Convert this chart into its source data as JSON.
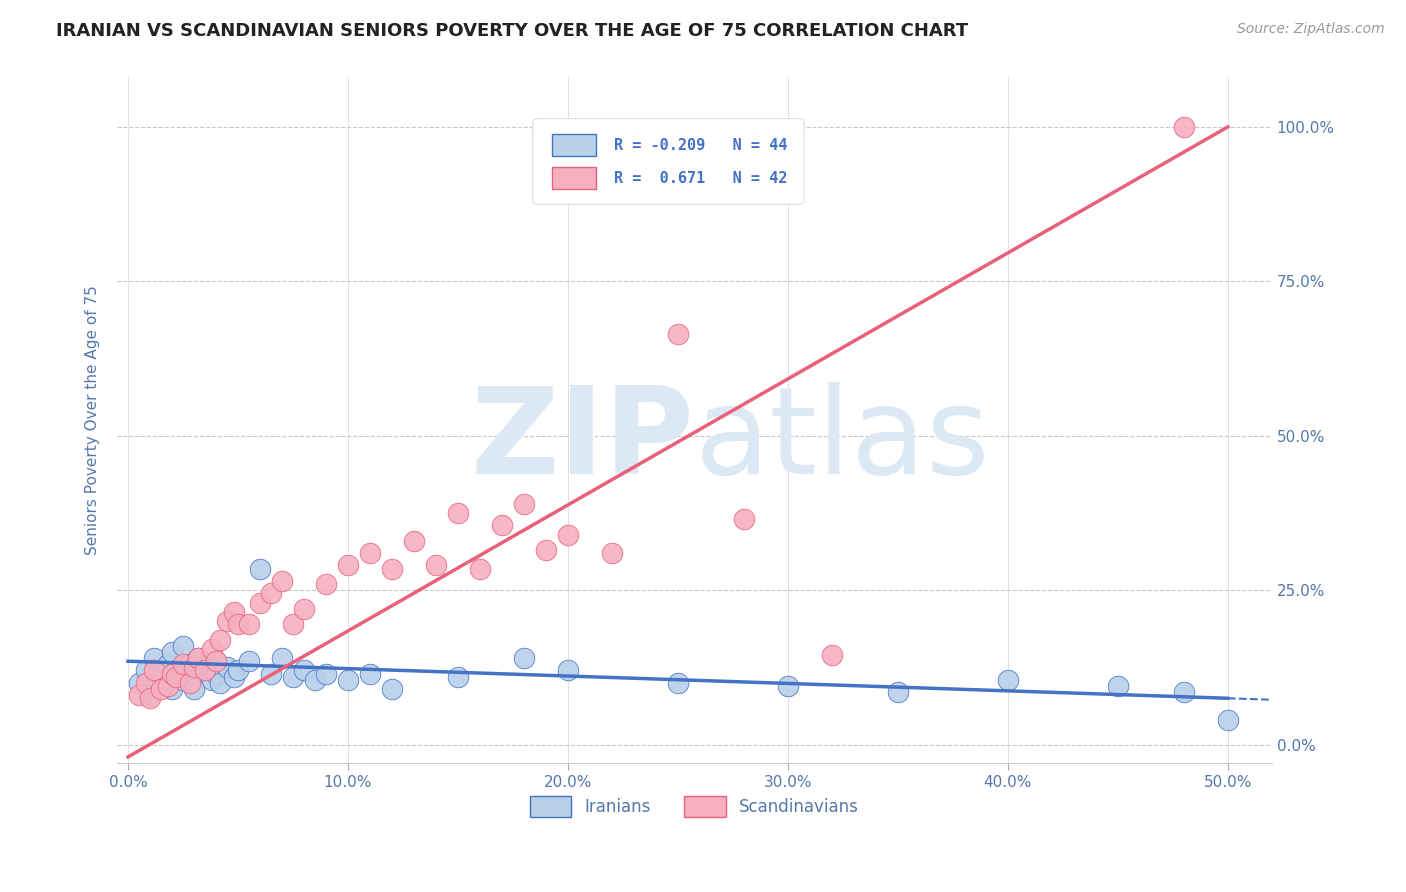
{
  "title": "IRANIAN VS SCANDINAVIAN SENIORS POVERTY OVER THE AGE OF 75 CORRELATION CHART",
  "source": "Source: ZipAtlas.com",
  "ylabel": "Seniors Poverty Over the Age of 75",
  "xlim": [
    -0.005,
    0.52
  ],
  "ylim": [
    -0.03,
    1.08
  ],
  "ytick_labels": [
    "0.0%",
    "25.0%",
    "50.0%",
    "75.0%",
    "100.0%"
  ],
  "ytick_values": [
    0.0,
    0.25,
    0.5,
    0.75,
    1.0
  ],
  "xtick_labels": [
    "0.0%",
    "",
    "",
    "",
    "",
    "",
    "",
    "",
    "",
    "",
    "10.0%",
    "",
    "",
    "",
    "",
    "",
    "",
    "",
    "",
    "",
    "20.0%",
    "",
    "",
    "",
    "",
    "",
    "",
    "",
    "",
    "",
    "30.0%",
    "",
    "",
    "",
    "",
    "",
    "",
    "",
    "",
    "",
    "40.0%",
    "",
    "",
    "",
    "",
    "",
    "",
    "",
    "",
    "",
    "50.0%"
  ],
  "xtick_values": [
    0.0,
    0.01,
    0.02,
    0.03,
    0.04,
    0.05,
    0.06,
    0.07,
    0.08,
    0.09,
    0.1,
    0.11,
    0.12,
    0.13,
    0.14,
    0.15,
    0.16,
    0.17,
    0.18,
    0.19,
    0.2,
    0.21,
    0.22,
    0.23,
    0.24,
    0.25,
    0.26,
    0.27,
    0.28,
    0.29,
    0.3,
    0.31,
    0.32,
    0.33,
    0.34,
    0.35,
    0.36,
    0.37,
    0.38,
    0.39,
    0.4,
    0.41,
    0.42,
    0.43,
    0.44,
    0.45,
    0.46,
    0.47,
    0.48,
    0.49,
    0.5
  ],
  "iranian_R": -0.209,
  "iranian_N": 44,
  "scandinavian_R": 0.671,
  "scandinavian_N": 42,
  "iranian_color": "#b8d0ea",
  "scandinavian_color": "#f5b0c0",
  "trend_iranian_color": "#4472c4",
  "trend_scandinavian_color": "#e8607a",
  "background_color": "#ffffff",
  "grid_color": "#c8c8c8",
  "title_color": "#222222",
  "axis_label_color": "#5577aa",
  "watermark_color": "#dde8f5",
  "legend_text_color": "#4472c4",
  "iranians_x": [
    0.005,
    0.008,
    0.01,
    0.012,
    0.015,
    0.018,
    0.02,
    0.02,
    0.022,
    0.025,
    0.025,
    0.028,
    0.03,
    0.03,
    0.032,
    0.035,
    0.038,
    0.04,
    0.04,
    0.042,
    0.045,
    0.048,
    0.05,
    0.055,
    0.06,
    0.065,
    0.07,
    0.075,
    0.08,
    0.085,
    0.09,
    0.1,
    0.11,
    0.12,
    0.15,
    0.18,
    0.2,
    0.25,
    0.3,
    0.35,
    0.4,
    0.45,
    0.48,
    0.5
  ],
  "iranians_y": [
    0.1,
    0.12,
    0.08,
    0.14,
    0.11,
    0.13,
    0.15,
    0.09,
    0.12,
    0.16,
    0.105,
    0.13,
    0.115,
    0.09,
    0.14,
    0.125,
    0.105,
    0.135,
    0.115,
    0.1,
    0.125,
    0.11,
    0.12,
    0.135,
    0.285,
    0.115,
    0.14,
    0.11,
    0.12,
    0.105,
    0.115,
    0.105,
    0.115,
    0.09,
    0.11,
    0.14,
    0.12,
    0.1,
    0.095,
    0.085,
    0.105,
    0.095,
    0.085,
    0.04
  ],
  "scandinavians_x": [
    0.005,
    0.008,
    0.01,
    0.012,
    0.015,
    0.018,
    0.02,
    0.022,
    0.025,
    0.028,
    0.03,
    0.032,
    0.035,
    0.038,
    0.04,
    0.042,
    0.045,
    0.048,
    0.05,
    0.055,
    0.06,
    0.065,
    0.07,
    0.075,
    0.08,
    0.09,
    0.1,
    0.11,
    0.12,
    0.13,
    0.14,
    0.15,
    0.16,
    0.17,
    0.18,
    0.19,
    0.2,
    0.22,
    0.25,
    0.28,
    0.32,
    0.48
  ],
  "scandinavians_y": [
    0.08,
    0.1,
    0.075,
    0.12,
    0.09,
    0.095,
    0.115,
    0.11,
    0.13,
    0.1,
    0.125,
    0.14,
    0.12,
    0.155,
    0.135,
    0.17,
    0.2,
    0.215,
    0.195,
    0.195,
    0.23,
    0.245,
    0.265,
    0.195,
    0.22,
    0.26,
    0.29,
    0.31,
    0.285,
    0.33,
    0.29,
    0.375,
    0.285,
    0.355,
    0.39,
    0.315,
    0.34,
    0.31,
    0.665,
    0.365,
    0.145,
    1.0
  ],
  "iran_trend_x0": 0.0,
  "iran_trend_x1": 0.5,
  "iran_trend_y0": 0.135,
  "iran_trend_y1": 0.075,
  "iran_trend_xsolid_end": 0.5,
  "iran_trend_xdash_start": 0.5,
  "iran_trend_xdash_end": 0.52,
  "scand_trend_x0": 0.0,
  "scand_trend_x1": 0.5,
  "scand_trend_y0": -0.02,
  "scand_trend_y1": 1.0
}
